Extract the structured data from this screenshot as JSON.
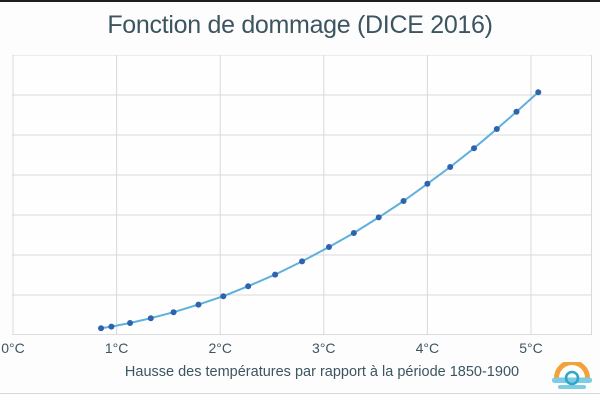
{
  "chart_data": {
    "type": "line",
    "title": "Fonction de dommage (DICE 2016)",
    "xlabel": "Hausse des températures par rapport à la période 1850-1900",
    "ylabel": "",
    "x_ticks": [
      "0°C",
      "1°C",
      "2°C",
      "3°C",
      "4°C",
      "5°C"
    ],
    "x_tick_values": [
      0,
      1,
      2,
      3,
      4,
      5
    ],
    "xlim": [
      0,
      5.6
    ],
    "ylim": [
      0,
      7
    ],
    "y_gridline_interval": 1,
    "y_axis_labels_visible": false,
    "grid": true,
    "legend": "none",
    "series": [
      {
        "x": [
          0.85,
          0.95,
          1.13,
          1.33,
          1.55,
          1.79,
          2.03,
          2.27,
          2.53,
          2.79,
          3.05,
          3.29,
          3.53,
          3.77,
          4.0,
          4.22,
          4.45,
          4.67,
          4.86,
          5.07
        ],
        "y": [
          0.17,
          0.21,
          0.3,
          0.42,
          0.57,
          0.76,
          0.97,
          1.22,
          1.51,
          1.84,
          2.2,
          2.55,
          2.94,
          3.35,
          3.78,
          4.2,
          4.67,
          5.15,
          5.58,
          6.07
        ],
        "line_color": "#5fafdd",
        "marker_color": "#2e64ab"
      }
    ]
  },
  "colors": {
    "background": "#fdfdfd",
    "text": "#3c5560",
    "gridline": "#d9d9d9",
    "axis_line": "#bfbfbf",
    "top_strip": "#1e1e1e",
    "bottom_strip": "#d8d8d8",
    "logo_orange": "#f2a13b",
    "logo_light_blue": "#7ecbe4",
    "logo_teal_ring": "#2fa7c6"
  },
  "logo": {
    "name": "sunrise-over-water-logo"
  }
}
